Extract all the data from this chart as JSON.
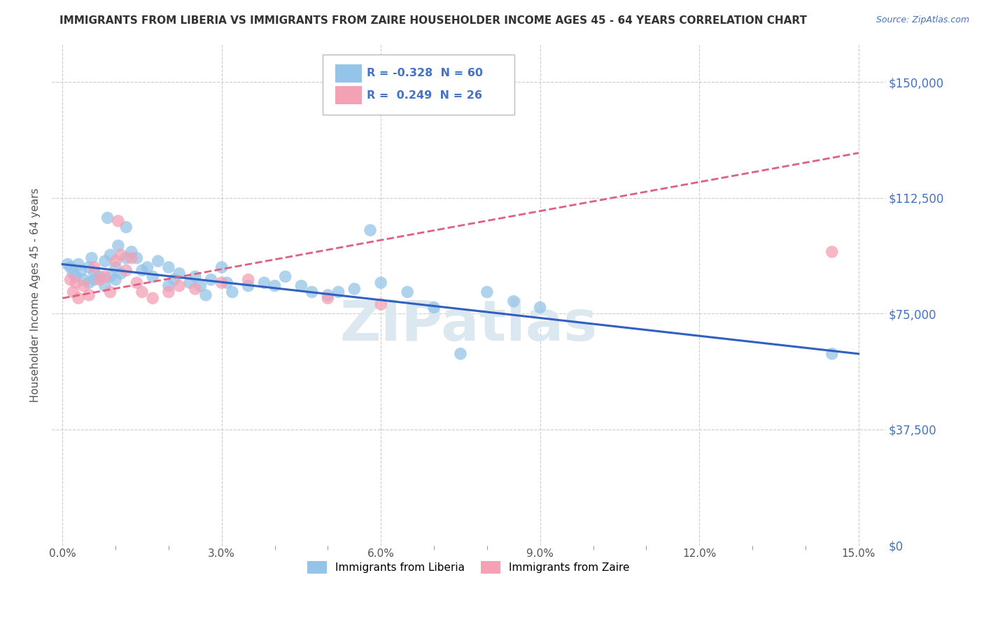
{
  "title": "IMMIGRANTS FROM LIBERIA VS IMMIGRANTS FROM ZAIRE HOUSEHOLDER INCOME AGES 45 - 64 YEARS CORRELATION CHART",
  "source": "Source: ZipAtlas.com",
  "xlabel_vals": [
    0.0,
    3.0,
    6.0,
    9.0,
    12.0,
    15.0
  ],
  "ylabel_vals": [
    0,
    37500,
    75000,
    112500,
    150000
  ],
  "xlim": [
    -0.2,
    15.5
  ],
  "ylim": [
    18000,
    162000
  ],
  "ylabel": "Householder Income Ages 45 - 64 years",
  "legend_liberia": "Immigrants from Liberia",
  "legend_zaire": "Immigrants from Zaire",
  "R_liberia": -0.328,
  "N_liberia": 60,
  "R_zaire": 0.249,
  "N_zaire": 26,
  "color_liberia": "#94c4e8",
  "color_zaire": "#f4a0b5",
  "line_color_liberia": "#3060c0",
  "line_color_zaire": "#e06080",
  "background_color": "#ffffff",
  "grid_color": "#cccccc",
  "title_color": "#333333",
  "axis_label_color": "#555555",
  "source_color": "#4472c4",
  "watermark_color": "#dce8f0",
  "liberia_points": [
    [
      0.1,
      91000
    ],
    [
      0.15,
      90000
    ],
    [
      0.2,
      88000
    ],
    [
      0.25,
      87000
    ],
    [
      0.3,
      91000
    ],
    [
      0.35,
      89000
    ],
    [
      0.4,
      86000
    ],
    [
      0.5,
      90000
    ],
    [
      0.5,
      85000
    ],
    [
      0.55,
      93000
    ],
    [
      0.6,
      88000
    ],
    [
      0.6,
      86000
    ],
    [
      0.7,
      87000
    ],
    [
      0.8,
      92000
    ],
    [
      0.8,
      84000
    ],
    [
      0.85,
      106000
    ],
    [
      0.9,
      94000
    ],
    [
      0.9,
      87000
    ],
    [
      1.0,
      90000
    ],
    [
      1.0,
      86000
    ],
    [
      1.05,
      97000
    ],
    [
      1.1,
      88000
    ],
    [
      1.2,
      103000
    ],
    [
      1.2,
      93000
    ],
    [
      1.3,
      95000
    ],
    [
      1.4,
      93000
    ],
    [
      1.5,
      89000
    ],
    [
      1.6,
      90000
    ],
    [
      1.7,
      87000
    ],
    [
      1.8,
      92000
    ],
    [
      2.0,
      90000
    ],
    [
      2.0,
      84000
    ],
    [
      2.1,
      86000
    ],
    [
      2.2,
      88000
    ],
    [
      2.4,
      85000
    ],
    [
      2.5,
      87000
    ],
    [
      2.6,
      84000
    ],
    [
      2.7,
      81000
    ],
    [
      2.8,
      86000
    ],
    [
      3.0,
      90000
    ],
    [
      3.1,
      85000
    ],
    [
      3.2,
      82000
    ],
    [
      3.5,
      84000
    ],
    [
      3.8,
      85000
    ],
    [
      4.0,
      84000
    ],
    [
      4.2,
      87000
    ],
    [
      4.5,
      84000
    ],
    [
      4.7,
      82000
    ],
    [
      5.0,
      81000
    ],
    [
      5.2,
      82000
    ],
    [
      5.5,
      83000
    ],
    [
      5.8,
      102000
    ],
    [
      6.0,
      85000
    ],
    [
      6.5,
      82000
    ],
    [
      7.0,
      77000
    ],
    [
      7.5,
      62000
    ],
    [
      8.0,
      82000
    ],
    [
      8.5,
      79000
    ],
    [
      9.0,
      77000
    ],
    [
      14.5,
      62000
    ]
  ],
  "zaire_points": [
    [
      0.15,
      86000
    ],
    [
      0.2,
      82000
    ],
    [
      0.25,
      85000
    ],
    [
      0.3,
      80000
    ],
    [
      0.4,
      84000
    ],
    [
      0.5,
      81000
    ],
    [
      0.6,
      90000
    ],
    [
      0.7,
      86000
    ],
    [
      0.8,
      87000
    ],
    [
      0.9,
      82000
    ],
    [
      1.0,
      92000
    ],
    [
      1.05,
      105000
    ],
    [
      1.1,
      94000
    ],
    [
      1.2,
      89000
    ],
    [
      1.3,
      93000
    ],
    [
      1.4,
      85000
    ],
    [
      1.5,
      82000
    ],
    [
      1.7,
      80000
    ],
    [
      2.0,
      82000
    ],
    [
      2.2,
      84000
    ],
    [
      2.5,
      83000
    ],
    [
      3.0,
      85000
    ],
    [
      3.5,
      86000
    ],
    [
      5.0,
      80000
    ],
    [
      6.0,
      78000
    ],
    [
      14.5,
      95000
    ]
  ],
  "lib_line_x": [
    0.0,
    15.0
  ],
  "lib_line_y": [
    91000,
    62000
  ],
  "zaire_line_x": [
    0.0,
    15.0
  ],
  "zaire_line_y": [
    80000,
    127000
  ]
}
